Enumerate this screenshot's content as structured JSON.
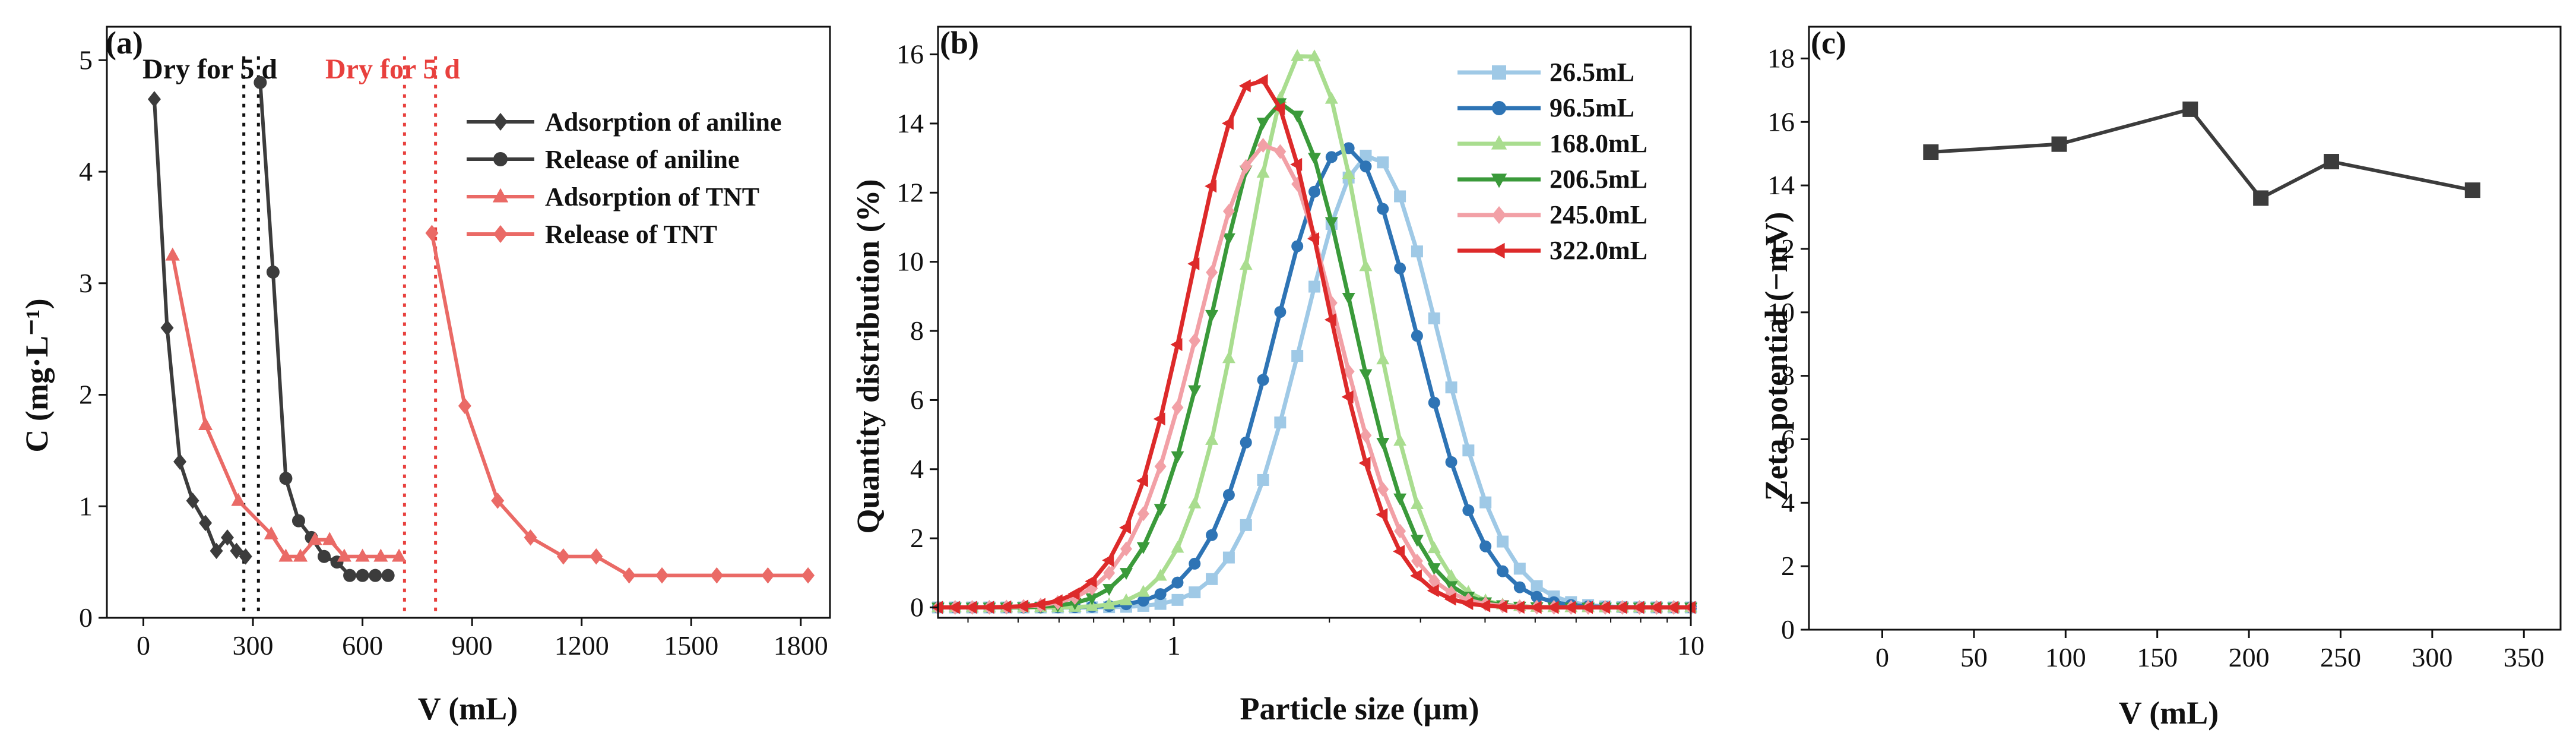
{
  "chart_data": [
    {
      "panel_label": "(a)",
      "type": "line",
      "xlabel": "V (mL)",
      "ylabel": "C (mg·L⁻¹)",
      "xlim": [
        -100,
        1880
      ],
      "ylim": [
        0,
        5.3
      ],
      "xticks": [
        0,
        300,
        600,
        900,
        1200,
        1500,
        1800
      ],
      "xtick_labels": [
        "0",
        "300",
        "600",
        "900",
        "1200",
        "1500",
        "1800"
      ],
      "yticks": [
        0,
        1,
        2,
        3,
        4,
        5
      ],
      "ytick_labels": [
        "0",
        "1",
        "2",
        "3",
        "4",
        "5"
      ],
      "annotations": [
        {
          "text": "Dry for 5 d",
          "color": "#111111",
          "x": 250
        },
        {
          "text": "Dry for 5 d",
          "color": "#e8403d",
          "x": 815
        }
      ],
      "dividers": [
        {
          "color": "#111111",
          "x": [
            275,
            315
          ]
        },
        {
          "color": "#e8403d",
          "x": [
            715,
            800
          ]
        }
      ],
      "series": [
        {
          "name": "Adsorption of aniline",
          "color": "#3c3c3c",
          "marker": "diamond",
          "x": [
            30,
            65,
            100,
            135,
            170,
            200,
            230,
            255,
            280
          ],
          "y": [
            4.65,
            2.6,
            1.4,
            1.05,
            0.85,
            0.6,
            0.72,
            0.6,
            0.55
          ]
        },
        {
          "name": "Release of aniline",
          "color": "#3c3c3c",
          "marker": "circle",
          "x": [
            320,
            355,
            390,
            425,
            460,
            495,
            530,
            565,
            600,
            635,
            670
          ],
          "y": [
            4.8,
            3.1,
            1.25,
            0.87,
            0.72,
            0.55,
            0.5,
            0.38,
            0.38,
            0.38,
            0.38
          ]
        },
        {
          "name": "Adsorption of TNT",
          "color": "#ea6a66",
          "marker": "triangle",
          "x": [
            80,
            170,
            260,
            350,
            390,
            430,
            470,
            510,
            550,
            600,
            650,
            700
          ],
          "y": [
            3.25,
            1.73,
            1.05,
            0.75,
            0.55,
            0.55,
            0.7,
            0.7,
            0.55,
            0.55,
            0.55,
            0.55
          ]
        },
        {
          "name": "Release of TNT",
          "color": "#ea6a66",
          "marker": "diamond",
          "x": [
            790,
            880,
            970,
            1060,
            1150,
            1240,
            1330,
            1420,
            1570,
            1710,
            1820
          ],
          "y": [
            3.45,
            1.9,
            1.05,
            0.72,
            0.55,
            0.55,
            0.38,
            0.38,
            0.38,
            0.38,
            0.38
          ]
        }
      ]
    },
    {
      "panel_label": "(b)",
      "type": "line",
      "xscale": "log",
      "xlabel": "Particle size (µm)",
      "ylabel": "Quantity distribution (%)",
      "xlim": [
        0.35,
        10
      ],
      "ylim": [
        -0.3,
        16.8
      ],
      "xticks": [
        1,
        10
      ],
      "xtick_labels": [
        "1",
        "10"
      ],
      "yticks": [
        0,
        2,
        4,
        6,
        8,
        10,
        12,
        14,
        16
      ],
      "ytick_labels": [
        "0",
        "2",
        "4",
        "6",
        "8",
        "10",
        "12",
        "14",
        "16"
      ],
      "series": [
        {
          "name": "26.5mL",
          "color": "#9fc9e6",
          "marker": "square",
          "peak_x": 2.4,
          "peak_y": 13.1,
          "sigma": 0.3
        },
        {
          "name": "96.5mL",
          "color": "#2e74b5",
          "marker": "circle",
          "peak_x": 2.15,
          "peak_y": 13.3,
          "sigma": 0.31
        },
        {
          "name": "168.0mL",
          "color": "#a9dd8f",
          "marker": "triangle",
          "peak_x": 1.8,
          "peak_y": 16.1,
          "sigma": 0.27
        },
        {
          "name": "206.5mL",
          "color": "#3a9a3a",
          "marker": "triangle-down",
          "peak_x": 1.62,
          "peak_y": 14.6,
          "sigma": 0.3
        },
        {
          "name": "245.0mL",
          "color": "#f2a0a6",
          "marker": "diamond",
          "peak_x": 1.52,
          "peak_y": 13.4,
          "sigma": 0.31
        },
        {
          "name": "322.0mL",
          "color": "#dd2a2a",
          "marker": "triangle-left",
          "peak_x": 1.45,
          "peak_y": 15.3,
          "sigma": 0.3
        }
      ]
    },
    {
      "panel_label": "(c)",
      "type": "line",
      "xlabel": "V (mL)",
      "ylabel": "Zeta potential (−mV)",
      "xlim": [
        -40,
        370
      ],
      "ylim": [
        0,
        19
      ],
      "xticks": [
        0,
        50,
        100,
        150,
        200,
        250,
        300,
        350
      ],
      "xtick_labels": [
        "0",
        "50",
        "100",
        "150",
        "200",
        "250",
        "300",
        "350"
      ],
      "yticks": [
        0,
        2,
        4,
        6,
        8,
        10,
        12,
        14,
        16,
        18
      ],
      "ytick_labels": [
        "0",
        "2",
        "4",
        "6",
        "8",
        "10",
        "12",
        "14",
        "16",
        "18"
      ],
      "series": [
        {
          "name": "Zeta potential",
          "color": "#3c3c3c",
          "marker": "square",
          "x": [
            26.5,
            96.5,
            168.0,
            206.5,
            245.0,
            322.0
          ],
          "y": [
            15.05,
            15.3,
            16.4,
            13.6,
            14.75,
            13.85
          ]
        }
      ]
    }
  ]
}
